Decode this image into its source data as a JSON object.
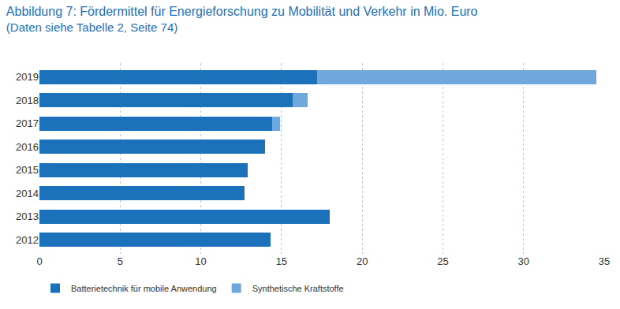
{
  "chart_data": {
    "type": "bar",
    "orientation": "horizontal",
    "stacked": true,
    "title": "Abbildung 7: Fördermittel für Energieforschung zu Mobilität und Verkehr in Mio. Euro",
    "subtitle": "(Daten siehe Tabelle 2, Seite 74)",
    "categories": [
      "2012",
      "2013",
      "2014",
      "2015",
      "2016",
      "2017",
      "2018",
      "2019"
    ],
    "series": [
      {
        "name": "Batterietechnik für mobile Anwendung",
        "color": "#1b72bb",
        "values": [
          14.3,
          18.0,
          12.7,
          12.9,
          14.0,
          14.4,
          15.7,
          17.2
        ]
      },
      {
        "name": "Synthetische Kraftstoffe",
        "color": "#6ea8dd",
        "values": [
          null,
          null,
          null,
          null,
          null,
          0.5,
          0.9,
          17.3
        ]
      }
    ],
    "xlim": [
      0,
      35
    ],
    "xticks": [
      0,
      5,
      10,
      15,
      20,
      25,
      30,
      35
    ],
    "grid": true,
    "legend": "bottom-left"
  }
}
